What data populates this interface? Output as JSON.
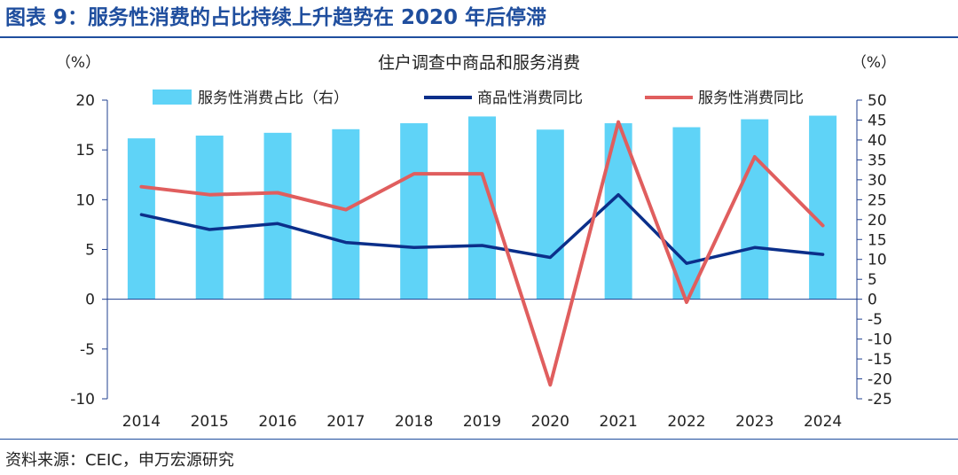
{
  "figure_title": "图表 9：服务性消费的占比持续上升趋势在 2020 年后停滞",
  "source": "资料来源：CEIC，申万宏源研究",
  "chart_data": {
    "type": "bar+line",
    "title": "住户调查中商品和服务消费",
    "left_unit": "（%）",
    "right_unit": "（%）",
    "categories": [
      "2014",
      "2015",
      "2016",
      "2017",
      "2018",
      "2019",
      "2020",
      "2021",
      "2022",
      "2023",
      "2024"
    ],
    "left_axis": {
      "min": -10,
      "max": 20,
      "ticks": [
        20,
        15,
        10,
        5,
        0,
        -5,
        -10
      ]
    },
    "right_axis": {
      "min": -25,
      "max": 50,
      "ticks": [
        50,
        45,
        40,
        35,
        30,
        25,
        20,
        15,
        10,
        5,
        0,
        -5,
        -10,
        -15,
        -20,
        -25
      ]
    },
    "grid": false,
    "legend_position": "top",
    "series": [
      {
        "name": "服务性消费占比（右）",
        "type": "bar",
        "axis": "right",
        "color": "#5fd3f7",
        "values": [
          40.4,
          41.1,
          41.8,
          42.7,
          44.2,
          45.9,
          42.6,
          44.2,
          43.2,
          45.2,
          46.1
        ]
      },
      {
        "name": "商品性消费同比",
        "type": "line",
        "axis": "left",
        "color": "#0b2f8a",
        "values": [
          8.5,
          7.0,
          7.6,
          5.7,
          5.2,
          5.4,
          4.2,
          10.5,
          3.6,
          5.2,
          4.5
        ]
      },
      {
        "name": "服务性消费同比",
        "type": "line",
        "axis": "left",
        "color": "#e05e5e",
        "values": [
          11.3,
          10.5,
          10.7,
          9.0,
          12.6,
          12.6,
          -8.6,
          17.8,
          -0.3,
          14.3,
          7.4
        ]
      }
    ]
  }
}
